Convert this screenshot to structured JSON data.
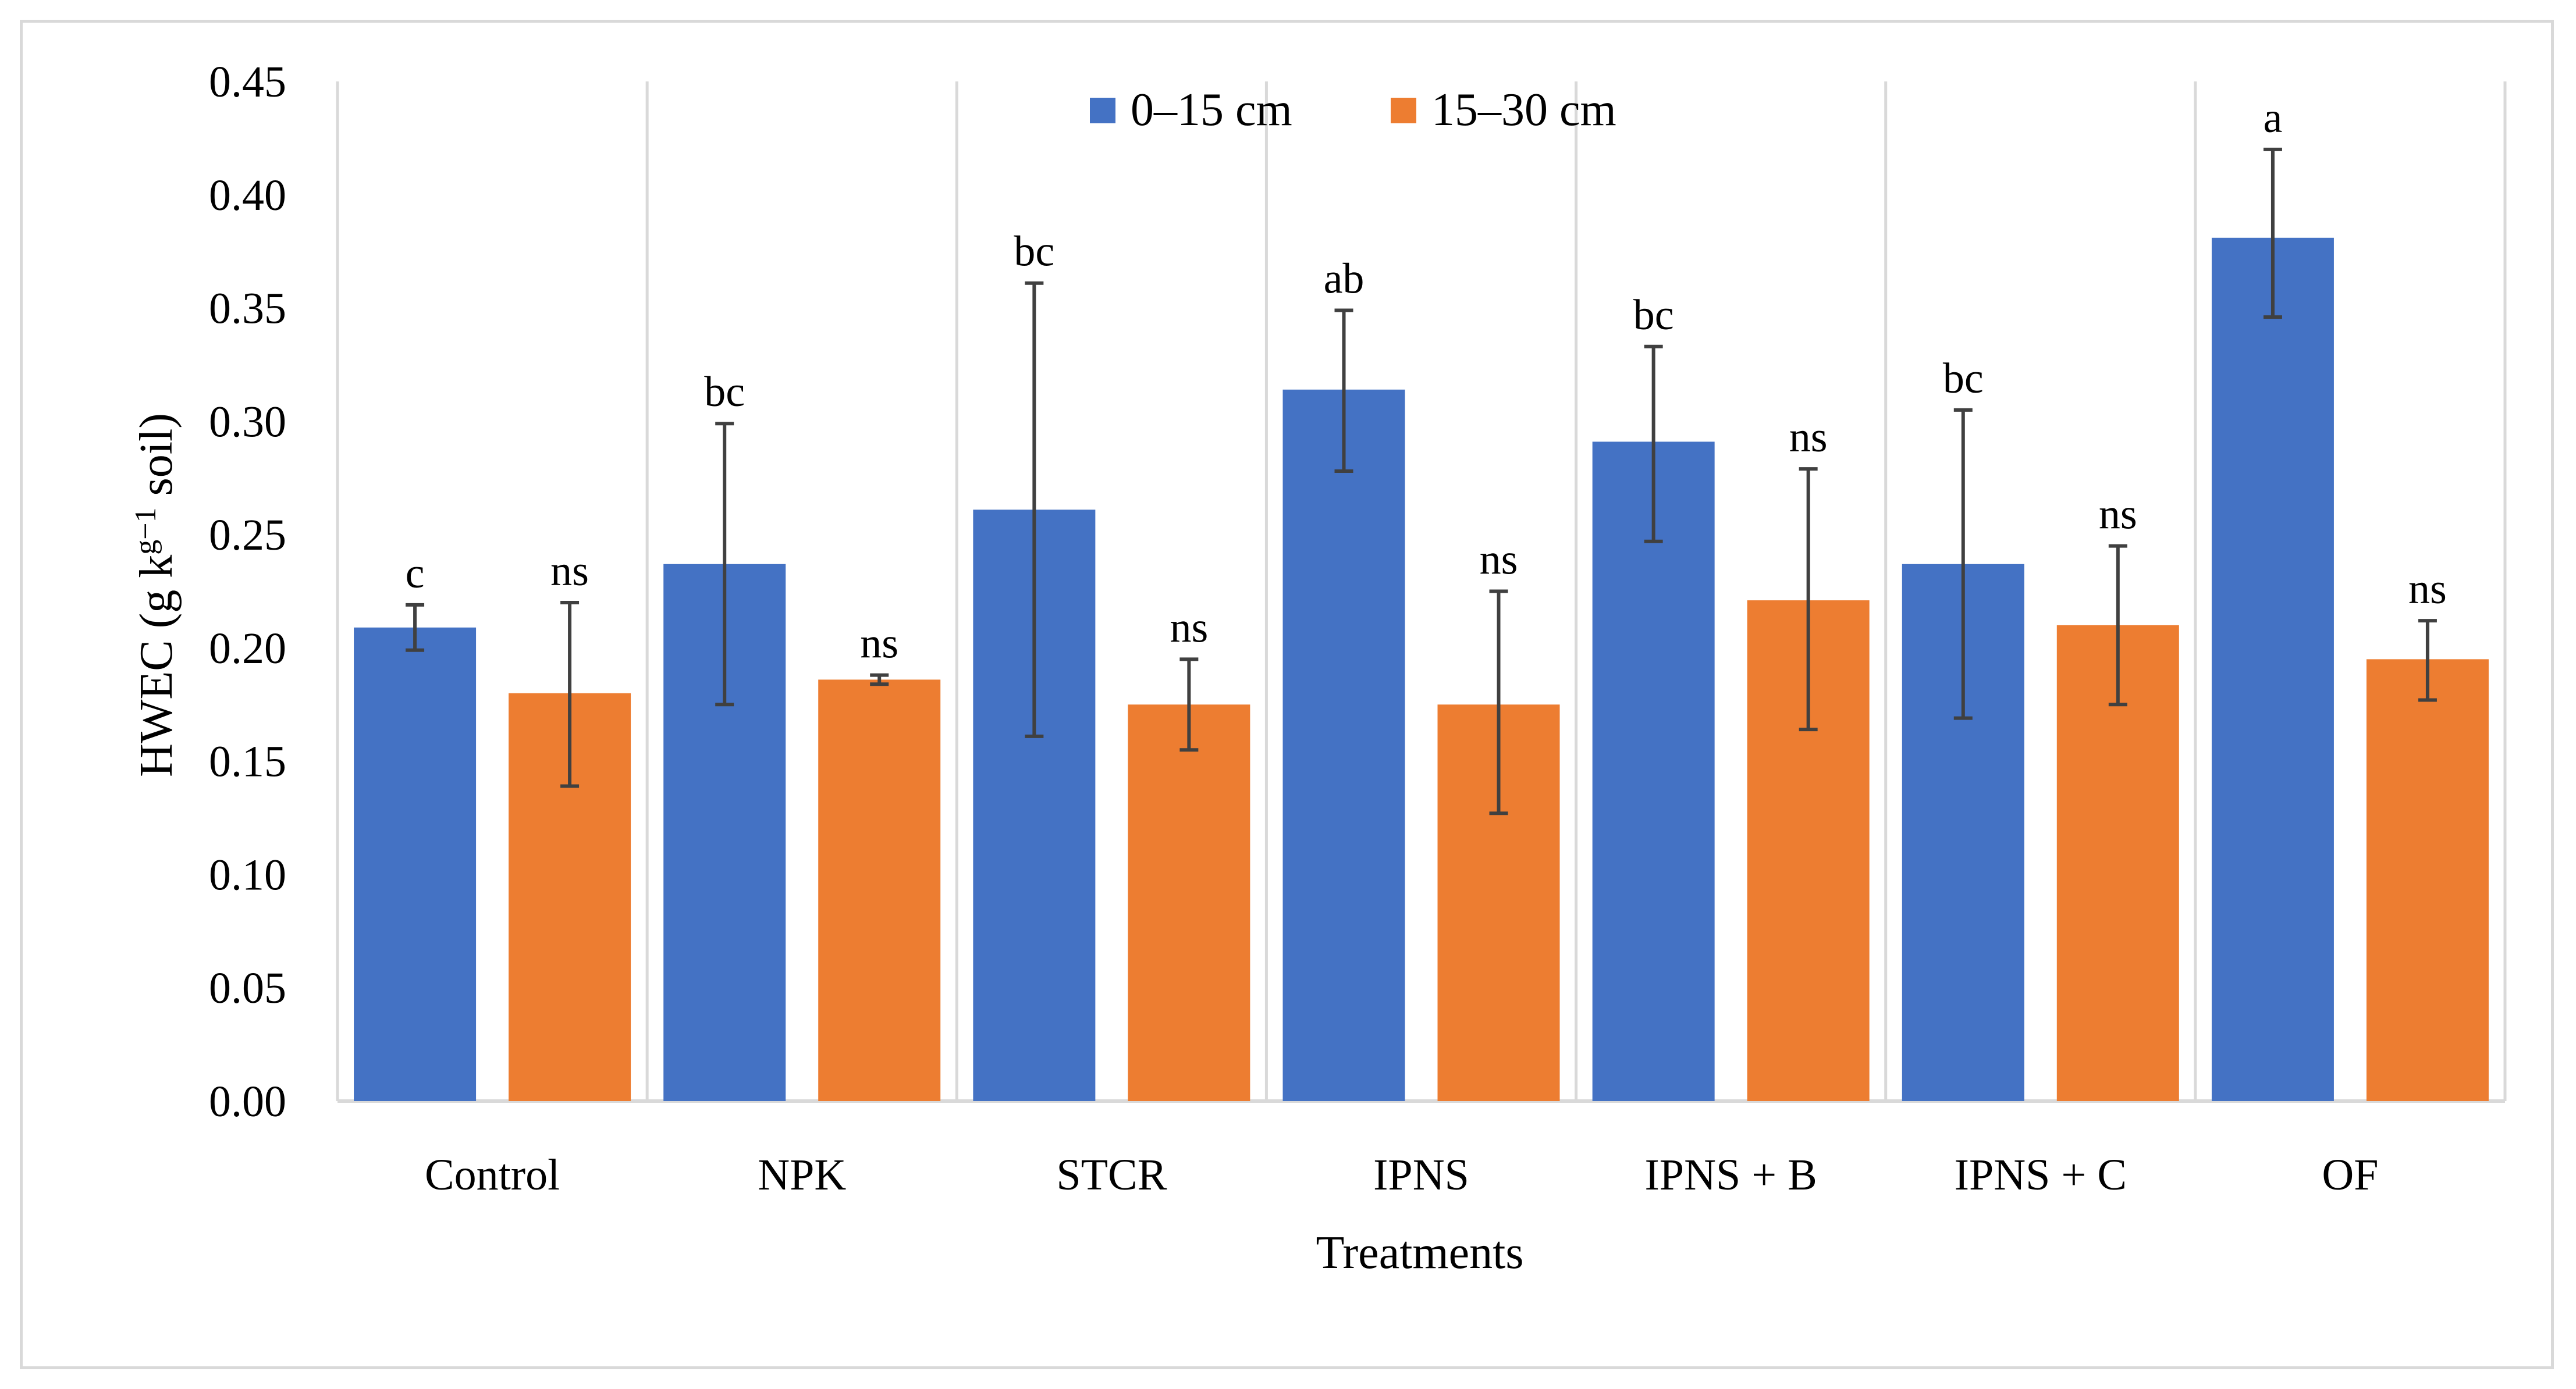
{
  "chart_data": {
    "type": "bar",
    "title": "",
    "xlabel": "Treatments",
    "ylabel": "HWEC (g kg⁻¹ soil)",
    "ylabel_parts": {
      "prefix": "HWEC (g k",
      "sup1": "g",
      "mid": " ",
      "unit_k": "",
      "sup2": "−1",
      "suffix": " soil)"
    },
    "ylim": [
      0,
      0.45
    ],
    "ytick_step": 0.05,
    "ytick_labels": [
      "0.00",
      "0.05",
      "0.10",
      "0.15",
      "0.20",
      "0.25",
      "0.30",
      "0.35",
      "0.40",
      "0.45"
    ],
    "categories": [
      "Control",
      "NPK",
      "STCR",
      "IPNS",
      "IPNS + B",
      "IPNS + C",
      "OF"
    ],
    "grid": "vertical-separators",
    "legend": {
      "placement": "top-center",
      "entries": [
        "0–15 cm",
        "15–30 cm"
      ]
    },
    "series": [
      {
        "name": "0–15 cm",
        "color": "#4472c4",
        "values": [
          0.209,
          0.237,
          0.261,
          0.314,
          0.291,
          0.237,
          0.381
        ],
        "error_low": [
          0.199,
          0.175,
          0.161,
          0.278,
          0.247,
          0.169,
          0.346
        ],
        "error_high": [
          0.219,
          0.299,
          0.361,
          0.349,
          0.333,
          0.305,
          0.42
        ],
        "significance": [
          "c",
          "bc",
          "bc",
          "ab",
          "bc",
          "bc",
          "a"
        ]
      },
      {
        "name": "15–30 cm",
        "color": "#ed7d31",
        "values": [
          0.18,
          0.186,
          0.175,
          0.175,
          0.221,
          0.21,
          0.195
        ],
        "error_low": [
          0.139,
          0.184,
          0.155,
          0.127,
          0.164,
          0.175,
          0.177
        ],
        "error_high": [
          0.22,
          0.188,
          0.195,
          0.225,
          0.279,
          0.245,
          0.212
        ],
        "significance": [
          "ns",
          "ns",
          "ns",
          "ns",
          "ns",
          "ns",
          "ns"
        ]
      }
    ]
  },
  "colors": {
    "axis": "#d9d9d9",
    "separator": "#d9d9d9",
    "error_bar": "#404040",
    "text": "#000000"
  }
}
